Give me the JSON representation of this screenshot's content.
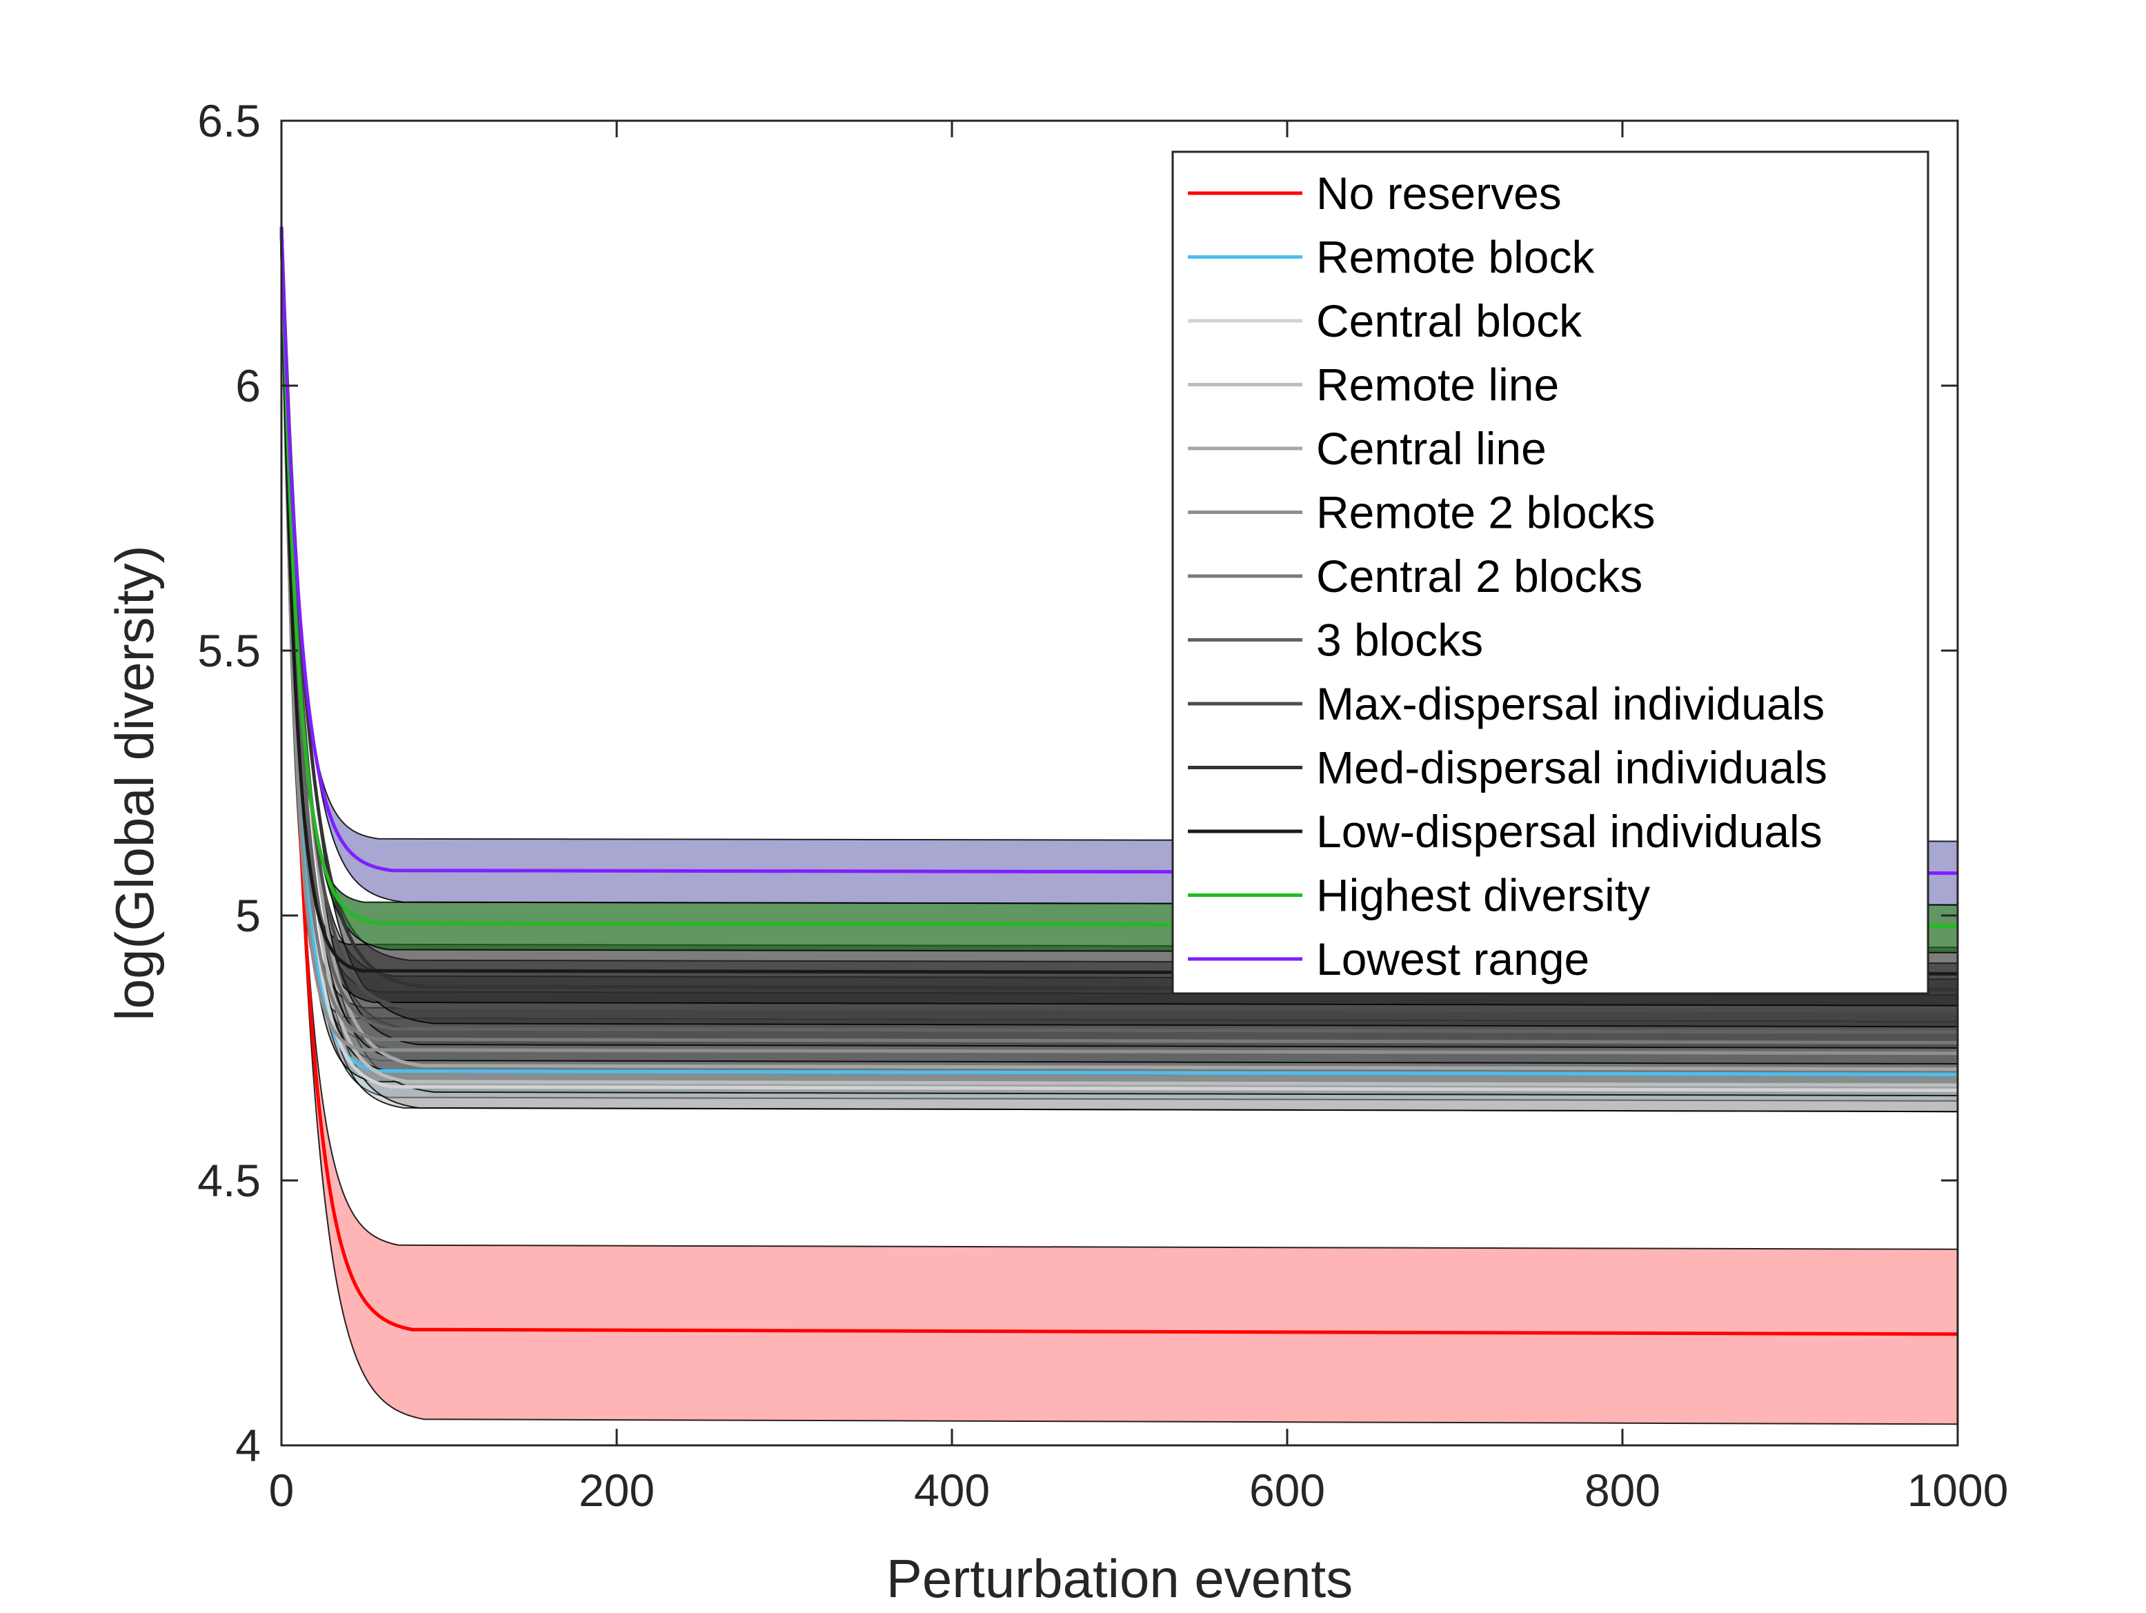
{
  "chart_data": {
    "type": "line",
    "title": "",
    "xlabel": "Perturbation events",
    "ylabel": "log(Global diversity)",
    "xlim": [
      0,
      1000
    ],
    "ylim": [
      4,
      6.5
    ],
    "xticks": [
      "0",
      "200",
      "400",
      "600",
      "800",
      "1000"
    ],
    "yticks": [
      "4",
      "4.5",
      "5",
      "5.5",
      "6",
      "6.5"
    ],
    "grid": false,
    "legend_position": "top-right",
    "start_value": 6.3,
    "series": [
      {
        "name": "No reserves",
        "color": "#ff0000",
        "mean": 4.21,
        "lower": 4.04,
        "upper": 4.37,
        "band_color": "#ff5a5a",
        "band_opacity": 0.45
      },
      {
        "name": "Remote block",
        "color": "#4dbeee",
        "mean": 4.7,
        "lower": 4.65,
        "upper": 4.76,
        "band_color": "#4dbeee",
        "band_opacity": 0.22
      },
      {
        "name": "Central block",
        "color": "#d3d3d3",
        "mean": 4.67,
        "lower": 4.63,
        "upper": 4.72,
        "band_color": "#9a9a9a",
        "band_opacity": 0.35
      },
      {
        "name": "Remote line",
        "color": "#bdbdbd",
        "mean": 4.68,
        "lower": 4.63,
        "upper": 4.74,
        "band_color": "#8a8a8a",
        "band_opacity": 0.35
      },
      {
        "name": "Central line",
        "color": "#a6a6a6",
        "mean": 4.71,
        "lower": 4.66,
        "upper": 4.78,
        "band_color": "#7a7a7a",
        "band_opacity": 0.35
      },
      {
        "name": "Remote 2 blocks",
        "color": "#8f8f8f",
        "mean": 4.74,
        "lower": 4.68,
        "upper": 4.8,
        "band_color": "#6a6a6a",
        "band_opacity": 0.4
      },
      {
        "name": "Central 2 blocks",
        "color": "#7a7a7a",
        "mean": 4.76,
        "lower": 4.7,
        "upper": 4.82,
        "band_color": "#5a5a5a",
        "band_opacity": 0.4
      },
      {
        "name": "3 blocks",
        "color": "#636363",
        "mean": 4.78,
        "lower": 4.72,
        "upper": 4.85,
        "band_color": "#4a4a4a",
        "band_opacity": 0.45
      },
      {
        "name": "Max-dispersal individuals",
        "color": "#4d4d4d",
        "mean": 4.82,
        "lower": 4.75,
        "upper": 4.88,
        "band_color": "#3a3a3a",
        "band_opacity": 0.5
      },
      {
        "name": "Med-dispersal individuals",
        "color": "#333333",
        "mean": 4.86,
        "lower": 4.79,
        "upper": 4.91,
        "band_color": "#303030",
        "band_opacity": 0.55
      },
      {
        "name": "Low-dispersal individuals",
        "color": "#1a1a1a",
        "mean": 4.89,
        "lower": 4.83,
        "upper": 4.94,
        "band_color": "#262626",
        "band_opacity": 0.6
      },
      {
        "name": "Highest diversity",
        "color": "#22bb22",
        "mean": 4.98,
        "lower": 4.93,
        "upper": 5.02,
        "band_color": "#1e6b1e",
        "band_opacity": 0.7
      },
      {
        "name": "Lowest range",
        "color": "#7f1fff",
        "mean": 5.08,
        "lower": 5.02,
        "upper": 5.14,
        "band_color": "#3c3c9a",
        "band_opacity": 0.45
      }
    ]
  }
}
